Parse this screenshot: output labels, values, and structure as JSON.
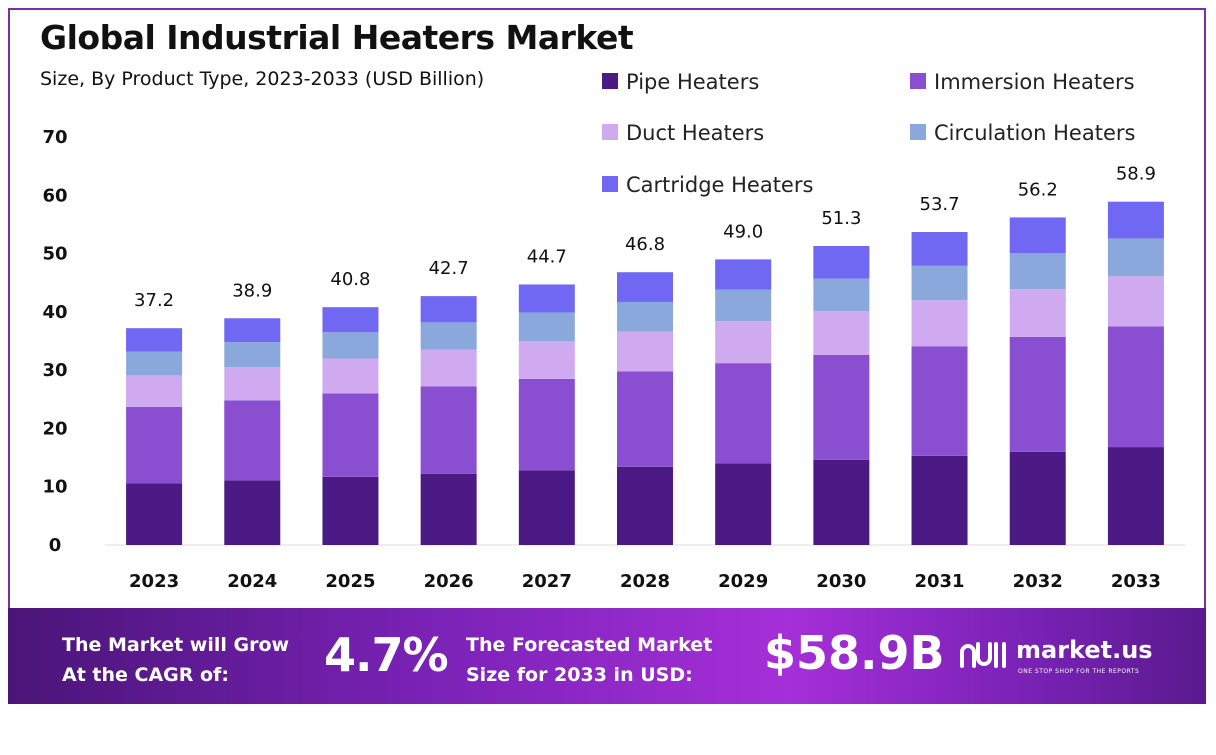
{
  "title": "Global Industrial Heaters Market",
  "subtitle": "Size, By Product Type, 2023-2033 (USD Billion)",
  "colors": {
    "pipe": "#4b1a85",
    "immersion": "#8a4fd1",
    "duct": "#d0aaf0",
    "circulation": "#8aa8db",
    "cartridge": "#7067f2",
    "banner_start": "#4a1578",
    "banner_end": "#a52fd8"
  },
  "chart_data": {
    "type": "bar",
    "stacked": true,
    "categories": [
      "2023",
      "2024",
      "2025",
      "2026",
      "2027",
      "2028",
      "2029",
      "2030",
      "2031",
      "2032",
      "2033"
    ],
    "series": [
      {
        "name": "Pipe Heaters",
        "color": "#4b1a85",
        "values": [
          10.6,
          11.1,
          11.7,
          12.2,
          12.8,
          13.4,
          14.0,
          14.6,
          15.3,
          16.0,
          16.8
        ]
      },
      {
        "name": "Immersion Heaters",
        "color": "#8a4fd1",
        "values": [
          13.1,
          13.7,
          14.3,
          15.0,
          15.7,
          16.4,
          17.2,
          18.0,
          18.8,
          19.7,
          20.7
        ]
      },
      {
        "name": "Duct Heaters",
        "color": "#d0aaf0",
        "values": [
          5.4,
          5.7,
          6.0,
          6.3,
          6.5,
          6.8,
          7.2,
          7.5,
          7.9,
          8.2,
          8.6
        ]
      },
      {
        "name": "Circulation Heaters",
        "color": "#8aa8db",
        "values": [
          4.1,
          4.3,
          4.5,
          4.7,
          4.9,
          5.1,
          5.4,
          5.6,
          5.9,
          6.2,
          6.5
        ]
      },
      {
        "name": "Cartridge Heaters",
        "color": "#7067f2",
        "values": [
          4.0,
          4.1,
          4.3,
          4.5,
          4.8,
          5.1,
          5.2,
          5.6,
          5.8,
          6.1,
          6.3
        ]
      }
    ],
    "totals": [
      "37.2",
      "38.9",
      "40.8",
      "42.7",
      "44.7",
      "46.8",
      "49.0",
      "51.3",
      "53.7",
      "56.2",
      "58.9"
    ],
    "yticks": [
      "0",
      "10",
      "20",
      "30",
      "40",
      "50",
      "60",
      "70"
    ],
    "ylim": [
      0,
      70
    ],
    "grid": false,
    "legend_position": "top-right"
  },
  "banner": {
    "cagr_label_line1": "The Market will Grow",
    "cagr_label_line2": "At the CAGR of:",
    "cagr_value": "4.7%",
    "forecast_label_line1": "The Forecasted Market",
    "forecast_label_line2": "Size for 2033 in USD:",
    "forecast_value": "$58.9B",
    "logo_text": "market.us",
    "logo_tagline": "ONE STOP SHOP FOR THE REPORTS",
    "logo_icon": "market-us-logo-icon"
  }
}
